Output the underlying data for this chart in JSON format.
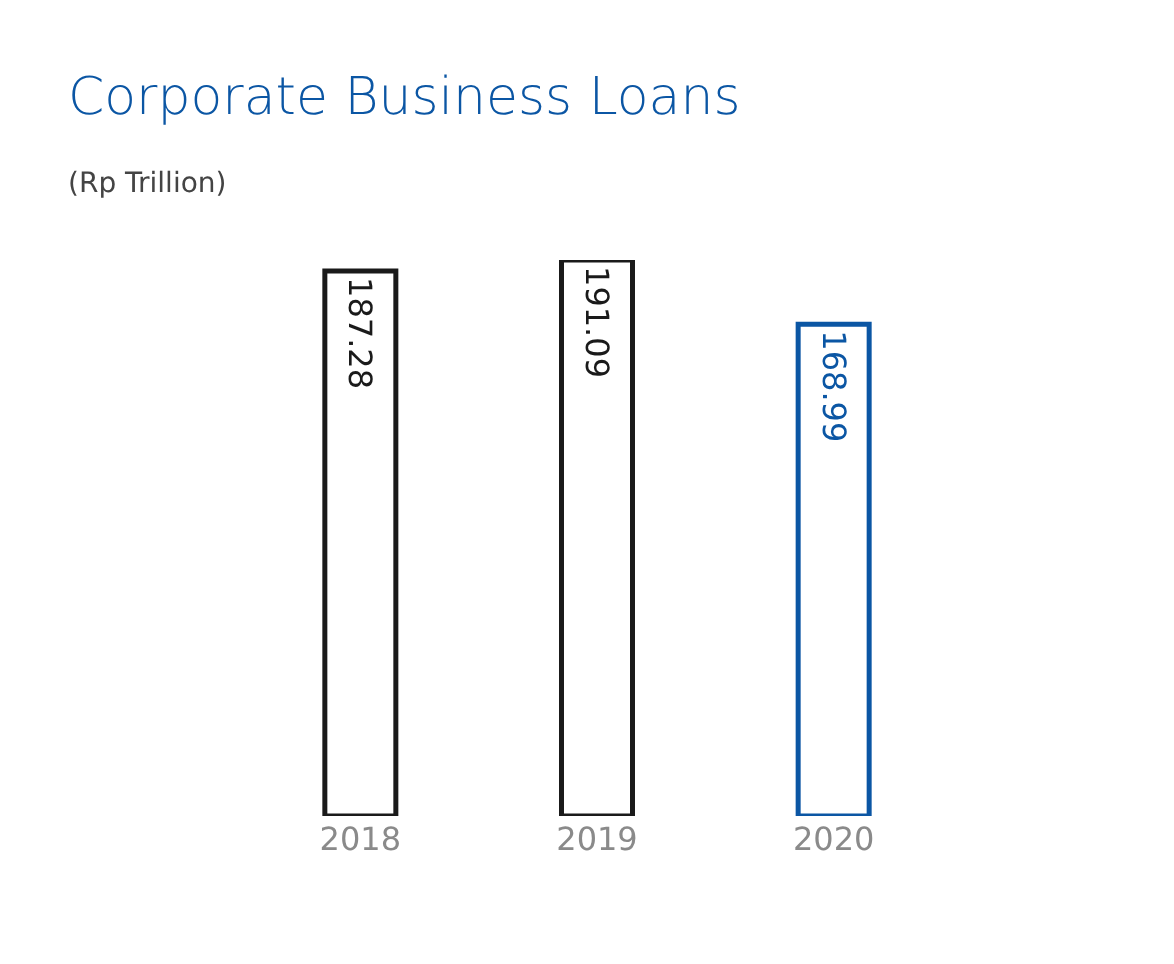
{
  "chart_data": {
    "type": "bar",
    "title": "Corporate Business Loans",
    "subtitle": "(Rp Trillion)",
    "categories": [
      "2018",
      "2019",
      "2020"
    ],
    "values": [
      187.28,
      191.09,
      168.99
    ],
    "colors": [
      "#1a1a1a",
      "#1a1a1a",
      "#0b56a4"
    ],
    "data_labels": true,
    "tick_labels": "x"
  }
}
